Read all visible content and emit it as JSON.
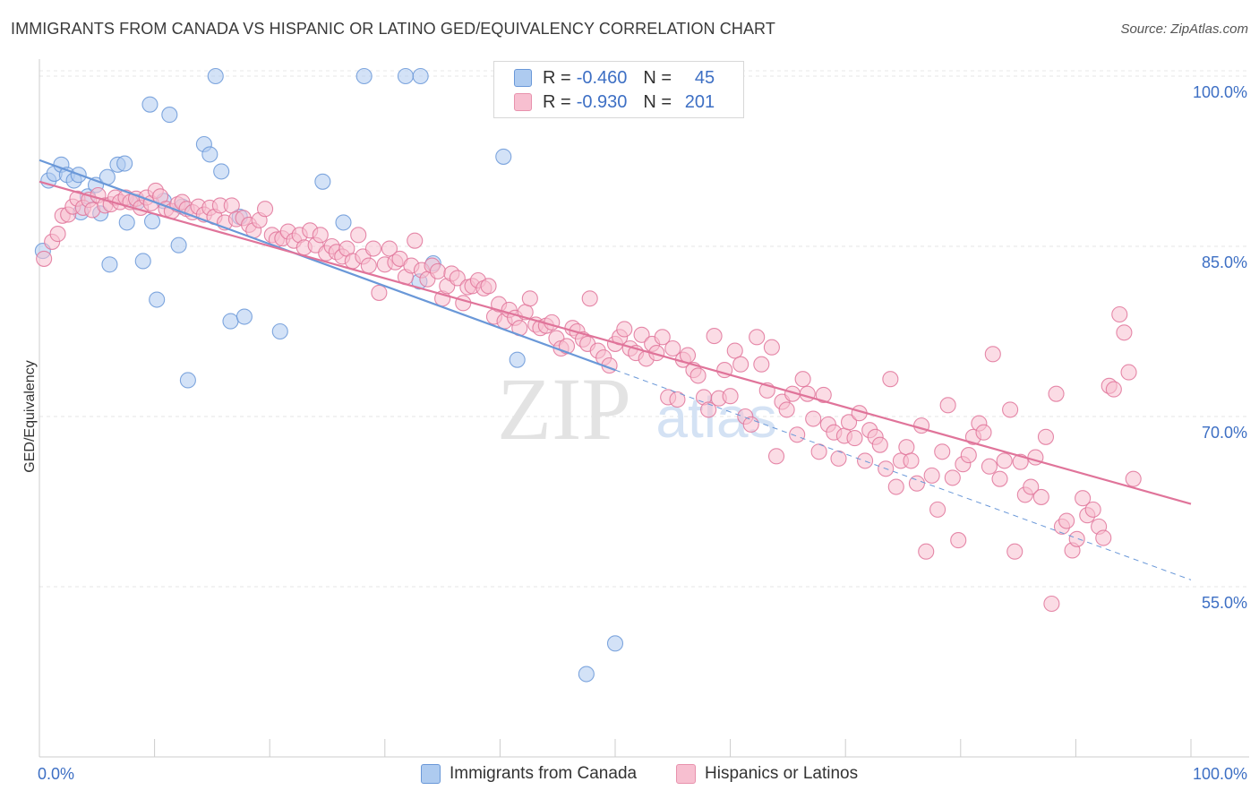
{
  "title": "IMMIGRANTS FROM CANADA VS HISPANIC OR LATINO GED/EQUIVALENCY CORRELATION CHART",
  "source": "Source: ZipAtlas.com",
  "watermark": {
    "zip": "ZIP",
    "atlas": "atlas"
  },
  "legend": {
    "rows": [
      {
        "r_label": "R =",
        "r_value": "-0.460",
        "n_label": "N =",
        "n_value": "45",
        "fill": "#aecbf0",
        "stroke": "#6a98d8"
      },
      {
        "r_label": "R =",
        "r_value": "-0.930",
        "n_label": "N =",
        "n_value": "201",
        "fill": "#f7bfd0",
        "stroke": "#e892ad"
      }
    ]
  },
  "bottom_legend": [
    {
      "label": "Immigrants from Canada",
      "fill": "#aecbf0",
      "stroke": "#6a98d8"
    },
    {
      "label": "Hispanics or Latinos",
      "fill": "#f7bfd0",
      "stroke": "#e892ad"
    }
  ],
  "chart_data": {
    "type": "scatter",
    "title": "IMMIGRANTS FROM CANADA VS HISPANIC OR LATINO GED/EQUIVALENCY CORRELATION CHART",
    "xlabel": "",
    "ylabel": "GED/Equivalency",
    "xlim": [
      0,
      100
    ],
    "ylim": [
      40,
      101.5
    ],
    "x_tick_labels": [
      "0.0%",
      "100.0%"
    ],
    "y_ticks": [
      {
        "value": 55,
        "label": "55.0%"
      },
      {
        "value": 70,
        "label": "70.0%"
      },
      {
        "value": 85,
        "label": "85.0%"
      },
      {
        "value": 100,
        "label": "100.0%"
      }
    ],
    "grid": true,
    "legend_position": "top-center",
    "series": [
      {
        "name": "Immigrants from Canada",
        "color": "#6a98d8",
        "fill": "#aecbf0",
        "trend": {
          "x": [
            0,
            50
          ],
          "y": [
            92.6,
            74.1
          ]
        },
        "trend_extension": {
          "x": [
            50,
            100
          ],
          "y": [
            74.1,
            55.6
          ]
        },
        "points": [
          [
            0.3,
            84.6
          ],
          [
            0.8,
            90.8
          ],
          [
            1.3,
            91.4
          ],
          [
            1.9,
            92.2
          ],
          [
            2.4,
            91.3
          ],
          [
            3.0,
            90.8
          ],
          [
            3.4,
            91.3
          ],
          [
            3.6,
            88.0
          ],
          [
            4.2,
            89.4
          ],
          [
            4.9,
            90.4
          ],
          [
            5.3,
            87.9
          ],
          [
            5.9,
            91.1
          ],
          [
            6.1,
            83.4
          ],
          [
            6.8,
            92.2
          ],
          [
            7.4,
            92.3
          ],
          [
            7.6,
            87.1
          ],
          [
            8.5,
            88.9
          ],
          [
            9.0,
            83.7
          ],
          [
            9.6,
            97.5
          ],
          [
            9.8,
            87.2
          ],
          [
            10.2,
            80.3
          ],
          [
            10.8,
            89.0
          ],
          [
            11.3,
            96.6
          ],
          [
            12.1,
            85.1
          ],
          [
            12.4,
            88.5
          ],
          [
            12.9,
            73.2
          ],
          [
            14.3,
            94.0
          ],
          [
            14.8,
            93.1
          ],
          [
            15.3,
            100.0
          ],
          [
            15.8,
            91.6
          ],
          [
            16.6,
            78.4
          ],
          [
            17.4,
            87.6
          ],
          [
            17.8,
            78.8
          ],
          [
            20.9,
            77.5
          ],
          [
            24.6,
            90.7
          ],
          [
            26.4,
            87.1
          ],
          [
            28.2,
            100.0
          ],
          [
            31.8,
            100.0
          ],
          [
            33.1,
            100.0
          ],
          [
            33.0,
            81.9
          ],
          [
            34.2,
            83.5
          ],
          [
            40.3,
            92.9
          ],
          [
            41.5,
            75.0
          ],
          [
            47.5,
            47.3
          ],
          [
            50.0,
            50.0
          ]
        ]
      },
      {
        "name": "Hispanics or Latinos",
        "color": "#e0749a",
        "fill": "#f7bfd0",
        "trend": {
          "x": [
            0,
            100
          ],
          "y": [
            90.7,
            62.3
          ]
        },
        "points": [
          [
            0.4,
            83.9
          ],
          [
            1.1,
            85.4
          ],
          [
            1.6,
            86.1
          ],
          [
            2.0,
            87.7
          ],
          [
            2.5,
            87.8
          ],
          [
            2.9,
            88.5
          ],
          [
            3.3,
            89.2
          ],
          [
            3.8,
            88.4
          ],
          [
            4.3,
            89.1
          ],
          [
            4.6,
            88.2
          ],
          [
            5.1,
            89.5
          ],
          [
            5.7,
            88.6
          ],
          [
            6.2,
            88.7
          ],
          [
            6.6,
            89.3
          ],
          [
            7.0,
            88.9
          ],
          [
            7.5,
            89.3
          ],
          [
            7.9,
            88.9
          ],
          [
            8.4,
            89.2
          ],
          [
            8.8,
            88.4
          ],
          [
            9.3,
            89.3
          ],
          [
            9.7,
            88.8
          ],
          [
            10.1,
            89.9
          ],
          [
            10.5,
            89.4
          ],
          [
            11.0,
            88.3
          ],
          [
            11.5,
            88.1
          ],
          [
            12.0,
            88.7
          ],
          [
            12.4,
            88.9
          ],
          [
            12.8,
            88.3
          ],
          [
            13.3,
            88.0
          ],
          [
            13.8,
            88.5
          ],
          [
            14.3,
            87.8
          ],
          [
            14.8,
            88.4
          ],
          [
            15.2,
            87.6
          ],
          [
            15.7,
            88.6
          ],
          [
            16.1,
            87.1
          ],
          [
            16.7,
            88.6
          ],
          [
            17.1,
            87.4
          ],
          [
            17.7,
            87.5
          ],
          [
            18.2,
            86.9
          ],
          [
            18.6,
            86.4
          ],
          [
            19.1,
            87.3
          ],
          [
            19.6,
            88.3
          ],
          [
            20.2,
            86.0
          ],
          [
            20.6,
            85.6
          ],
          [
            21.1,
            85.7
          ],
          [
            21.6,
            86.3
          ],
          [
            22.1,
            85.5
          ],
          [
            22.6,
            86.0
          ],
          [
            23.0,
            84.9
          ],
          [
            23.5,
            86.4
          ],
          [
            24.0,
            85.1
          ],
          [
            24.4,
            86.0
          ],
          [
            24.9,
            84.4
          ],
          [
            25.4,
            85.0
          ],
          [
            25.8,
            84.5
          ],
          [
            26.3,
            84.1
          ],
          [
            26.7,
            84.8
          ],
          [
            27.2,
            83.7
          ],
          [
            27.7,
            86.0
          ],
          [
            28.1,
            84.1
          ],
          [
            28.6,
            83.3
          ],
          [
            29.0,
            84.8
          ],
          [
            29.5,
            80.9
          ],
          [
            30.0,
            83.4
          ],
          [
            30.4,
            84.8
          ],
          [
            30.9,
            83.6
          ],
          [
            31.3,
            83.9
          ],
          [
            31.8,
            82.3
          ],
          [
            32.3,
            83.3
          ],
          [
            32.6,
            85.5
          ],
          [
            33.2,
            82.9
          ],
          [
            33.7,
            82.1
          ],
          [
            34.1,
            83.3
          ],
          [
            34.6,
            82.8
          ],
          [
            35.0,
            80.4
          ],
          [
            35.4,
            81.5
          ],
          [
            35.8,
            82.6
          ],
          [
            36.3,
            82.2
          ],
          [
            36.8,
            80.0
          ],
          [
            37.2,
            81.4
          ],
          [
            37.6,
            81.5
          ],
          [
            38.1,
            82.0
          ],
          [
            38.6,
            81.3
          ],
          [
            39.0,
            81.5
          ],
          [
            39.5,
            78.8
          ],
          [
            39.9,
            79.9
          ],
          [
            40.4,
            78.4
          ],
          [
            40.8,
            79.4
          ],
          [
            41.3,
            78.7
          ],
          [
            41.7,
            77.8
          ],
          [
            42.2,
            79.2
          ],
          [
            42.6,
            80.4
          ],
          [
            43.1,
            78.1
          ],
          [
            43.5,
            77.8
          ],
          [
            44.0,
            78.0
          ],
          [
            44.5,
            78.3
          ],
          [
            44.9,
            76.9
          ],
          [
            45.3,
            76.0
          ],
          [
            45.8,
            76.2
          ],
          [
            46.3,
            77.8
          ],
          [
            46.7,
            77.5
          ],
          [
            47.2,
            76.8
          ],
          [
            47.6,
            76.4
          ],
          [
            47.8,
            80.4
          ],
          [
            48.5,
            75.8
          ],
          [
            49.0,
            75.2
          ],
          [
            49.5,
            74.5
          ],
          [
            50.0,
            76.4
          ],
          [
            50.4,
            77.0
          ],
          [
            50.8,
            77.7
          ],
          [
            51.3,
            76.0
          ],
          [
            51.8,
            75.6
          ],
          [
            52.3,
            77.2
          ],
          [
            52.7,
            75.1
          ],
          [
            53.2,
            76.4
          ],
          [
            53.6,
            75.6
          ],
          [
            54.1,
            77.0
          ],
          [
            54.6,
            71.7
          ],
          [
            55.0,
            76.0
          ],
          [
            55.4,
            71.5
          ],
          [
            55.9,
            75.0
          ],
          [
            56.3,
            75.4
          ],
          [
            56.8,
            74.1
          ],
          [
            57.2,
            73.6
          ],
          [
            57.7,
            71.7
          ],
          [
            58.1,
            70.6
          ],
          [
            58.6,
            77.1
          ],
          [
            59.0,
            71.6
          ],
          [
            59.5,
            74.1
          ],
          [
            60.0,
            71.8
          ],
          [
            60.4,
            75.8
          ],
          [
            60.9,
            74.6
          ],
          [
            61.3,
            70.0
          ],
          [
            61.8,
            69.3
          ],
          [
            62.3,
            77.0
          ],
          [
            62.7,
            74.6
          ],
          [
            63.2,
            72.3
          ],
          [
            63.6,
            76.1
          ],
          [
            64.0,
            66.5
          ],
          [
            64.5,
            71.3
          ],
          [
            64.9,
            70.6
          ],
          [
            65.4,
            72.0
          ],
          [
            65.8,
            68.4
          ],
          [
            66.3,
            73.3
          ],
          [
            66.7,
            72.0
          ],
          [
            67.2,
            69.8
          ],
          [
            67.7,
            66.9
          ],
          [
            68.1,
            71.9
          ],
          [
            68.5,
            69.3
          ],
          [
            69.0,
            68.6
          ],
          [
            69.4,
            66.3
          ],
          [
            69.9,
            68.3
          ],
          [
            70.3,
            69.5
          ],
          [
            70.8,
            68.1
          ],
          [
            71.2,
            70.3
          ],
          [
            71.7,
            66.1
          ],
          [
            72.1,
            68.8
          ],
          [
            72.6,
            68.2
          ],
          [
            73.0,
            67.5
          ],
          [
            73.5,
            65.4
          ],
          [
            73.9,
            73.3
          ],
          [
            74.4,
            63.8
          ],
          [
            74.8,
            66.1
          ],
          [
            75.3,
            67.3
          ],
          [
            75.7,
            66.1
          ],
          [
            76.2,
            64.1
          ],
          [
            76.6,
            69.2
          ],
          [
            77.0,
            58.1
          ],
          [
            77.5,
            64.8
          ],
          [
            78.0,
            61.8
          ],
          [
            78.4,
            66.9
          ],
          [
            78.9,
            71.0
          ],
          [
            79.3,
            64.6
          ],
          [
            79.8,
            59.1
          ],
          [
            80.2,
            65.8
          ],
          [
            80.7,
            66.6
          ],
          [
            81.1,
            68.2
          ],
          [
            81.6,
            69.4
          ],
          [
            82.0,
            68.6
          ],
          [
            82.5,
            65.6
          ],
          [
            82.8,
            75.5
          ],
          [
            83.4,
            64.5
          ],
          [
            83.8,
            66.1
          ],
          [
            84.3,
            70.6
          ],
          [
            84.7,
            58.1
          ],
          [
            85.2,
            66.0
          ],
          [
            85.6,
            63.1
          ],
          [
            86.1,
            63.8
          ],
          [
            86.5,
            66.4
          ],
          [
            87.0,
            62.9
          ],
          [
            87.4,
            68.2
          ],
          [
            87.9,
            53.5
          ],
          [
            88.3,
            72.0
          ],
          [
            88.8,
            60.3
          ],
          [
            89.2,
            60.8
          ],
          [
            89.7,
            58.2
          ],
          [
            90.1,
            59.2
          ],
          [
            90.6,
            62.8
          ],
          [
            91.0,
            61.3
          ],
          [
            91.5,
            61.8
          ],
          [
            92.0,
            60.3
          ],
          [
            92.4,
            59.3
          ],
          [
            92.9,
            72.7
          ],
          [
            93.3,
            72.4
          ],
          [
            93.8,
            79.0
          ],
          [
            94.2,
            77.4
          ],
          [
            94.6,
            73.9
          ],
          [
            95.0,
            64.5
          ]
        ]
      }
    ]
  }
}
